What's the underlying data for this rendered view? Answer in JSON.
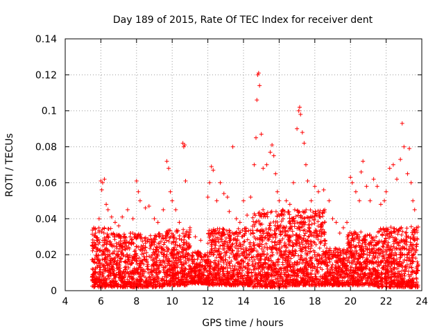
{
  "chart_data": {
    "type": "scatter",
    "title": "Day 189 of 2015, Rate Of TEC Index for receiver dent",
    "xlabel": "GPS time / hours",
    "ylabel": "ROTI / TECUs",
    "xlim": [
      4,
      24
    ],
    "ylim": [
      0,
      0.14
    ],
    "xticks": [
      4,
      6,
      8,
      10,
      12,
      14,
      16,
      18,
      20,
      22,
      24
    ],
    "xtick_labels": [
      "4",
      "6",
      "8",
      "10",
      "12",
      "14",
      "16",
      "18",
      "20",
      "22",
      "24"
    ],
    "yticks": [
      0,
      0.02,
      0.04,
      0.06,
      0.08,
      0.1,
      0.12,
      0.14
    ],
    "ytick_labels": [
      "0",
      "0.02",
      "0.04",
      "0.06",
      "0.08",
      "0.1",
      "0.12",
      "0.14"
    ],
    "grid": true,
    "marker": "+",
    "color": "#ff0000",
    "series": [
      {
        "name": "ROTI",
        "points": [
          [
            5.6,
            0.035
          ],
          [
            5.7,
            0.032
          ],
          [
            5.8,
            0.028
          ],
          [
            5.9,
            0.04
          ],
          [
            6.0,
            0.061
          ],
          [
            6.05,
            0.056
          ],
          [
            6.1,
            0.06
          ],
          [
            6.2,
            0.062
          ],
          [
            6.3,
            0.048
          ],
          [
            6.4,
            0.045
          ],
          [
            6.6,
            0.041
          ],
          [
            6.8,
            0.038
          ],
          [
            7.0,
            0.036
          ],
          [
            7.2,
            0.041
          ],
          [
            7.5,
            0.045
          ],
          [
            7.8,
            0.04
          ],
          [
            8.0,
            0.061
          ],
          [
            8.1,
            0.055
          ],
          [
            8.2,
            0.05
          ],
          [
            8.5,
            0.046
          ],
          [
            8.7,
            0.047
          ],
          [
            9.0,
            0.04
          ],
          [
            9.2,
            0.038
          ],
          [
            9.5,
            0.045
          ],
          [
            9.7,
            0.072
          ],
          [
            9.8,
            0.068
          ],
          [
            9.9,
            0.055
          ],
          [
            10.0,
            0.05
          ],
          [
            10.2,
            0.045
          ],
          [
            10.4,
            0.038
          ],
          [
            10.6,
            0.082
          ],
          [
            10.65,
            0.08
          ],
          [
            10.7,
            0.081
          ],
          [
            10.75,
            0.061
          ],
          [
            11.0,
            0.035
          ],
          [
            11.3,
            0.03
          ],
          [
            11.6,
            0.028
          ],
          [
            12.0,
            0.052
          ],
          [
            12.1,
            0.06
          ],
          [
            12.2,
            0.069
          ],
          [
            12.3,
            0.067
          ],
          [
            12.5,
            0.05
          ],
          [
            12.7,
            0.06
          ],
          [
            12.9,
            0.054
          ],
          [
            13.1,
            0.052
          ],
          [
            13.2,
            0.044
          ],
          [
            13.4,
            0.08
          ],
          [
            13.6,
            0.04
          ],
          [
            13.8,
            0.038
          ],
          [
            14.0,
            0.05
          ],
          [
            14.2,
            0.042
          ],
          [
            14.4,
            0.052
          ],
          [
            14.6,
            0.07
          ],
          [
            14.7,
            0.085
          ],
          [
            14.75,
            0.106
          ],
          [
            14.8,
            0.12
          ],
          [
            14.85,
            0.121
          ],
          [
            14.9,
            0.114
          ],
          [
            15.0,
            0.087
          ],
          [
            15.1,
            0.068
          ],
          [
            15.3,
            0.07
          ],
          [
            15.5,
            0.077
          ],
          [
            15.6,
            0.081
          ],
          [
            15.7,
            0.075
          ],
          [
            15.8,
            0.065
          ],
          [
            15.9,
            0.055
          ],
          [
            16.0,
            0.05
          ],
          [
            16.2,
            0.045
          ],
          [
            16.4,
            0.05
          ],
          [
            16.6,
            0.048
          ],
          [
            16.8,
            0.06
          ],
          [
            17.0,
            0.09
          ],
          [
            17.1,
            0.1
          ],
          [
            17.15,
            0.102
          ],
          [
            17.2,
            0.098
          ],
          [
            17.3,
            0.088
          ],
          [
            17.4,
            0.082
          ],
          [
            17.5,
            0.07
          ],
          [
            17.6,
            0.061
          ],
          [
            17.8,
            0.05
          ],
          [
            18.0,
            0.058
          ],
          [
            18.2,
            0.055
          ],
          [
            18.5,
            0.056
          ],
          [
            18.8,
            0.05
          ],
          [
            19.0,
            0.04
          ],
          [
            19.2,
            0.038
          ],
          [
            19.4,
            0.032
          ],
          [
            19.6,
            0.035
          ],
          [
            19.8,
            0.038
          ],
          [
            20.0,
            0.063
          ],
          [
            20.1,
            0.06
          ],
          [
            20.3,
            0.055
          ],
          [
            20.5,
            0.05
          ],
          [
            20.6,
            0.066
          ],
          [
            20.7,
            0.072
          ],
          [
            20.9,
            0.058
          ],
          [
            21.1,
            0.05
          ],
          [
            21.3,
            0.062
          ],
          [
            21.5,
            0.058
          ],
          [
            21.7,
            0.048
          ],
          [
            21.9,
            0.05
          ],
          [
            22.0,
            0.055
          ],
          [
            22.2,
            0.068
          ],
          [
            22.4,
            0.07
          ],
          [
            22.6,
            0.062
          ],
          [
            22.8,
            0.073
          ],
          [
            22.9,
            0.093
          ],
          [
            23.0,
            0.08
          ],
          [
            23.2,
            0.065
          ],
          [
            23.3,
            0.079
          ],
          [
            23.4,
            0.06
          ],
          [
            23.5,
            0.05
          ],
          [
            23.6,
            0.045
          ],
          [
            23.7,
            0.035
          ]
        ],
        "bands": [
          {
            "x_start": 5.5,
            "x_end": 6.8,
            "y_min": 0.002,
            "y_max": 0.035,
            "count": 320
          },
          {
            "x_start": 6.8,
            "x_end": 9.5,
            "y_min": 0.002,
            "y_max": 0.032,
            "count": 600
          },
          {
            "x_start": 9.5,
            "x_end": 11.0,
            "y_min": 0.003,
            "y_max": 0.034,
            "count": 360
          },
          {
            "x_start": 11.0,
            "x_end": 12.0,
            "y_min": 0.004,
            "y_max": 0.022,
            "count": 220
          },
          {
            "x_start": 12.0,
            "x_end": 14.5,
            "y_min": 0.003,
            "y_max": 0.035,
            "count": 600
          },
          {
            "x_start": 14.5,
            "x_end": 16.5,
            "y_min": 0.002,
            "y_max": 0.045,
            "count": 520
          },
          {
            "x_start": 16.5,
            "x_end": 18.6,
            "y_min": 0.003,
            "y_max": 0.045,
            "count": 560
          },
          {
            "x_start": 18.6,
            "x_end": 19.8,
            "y_min": 0.003,
            "y_max": 0.024,
            "count": 260
          },
          {
            "x_start": 19.8,
            "x_end": 21.5,
            "y_min": 0.003,
            "y_max": 0.033,
            "count": 440
          },
          {
            "x_start": 21.5,
            "x_end": 23.8,
            "y_min": 0.002,
            "y_max": 0.036,
            "count": 560
          }
        ]
      }
    ]
  }
}
